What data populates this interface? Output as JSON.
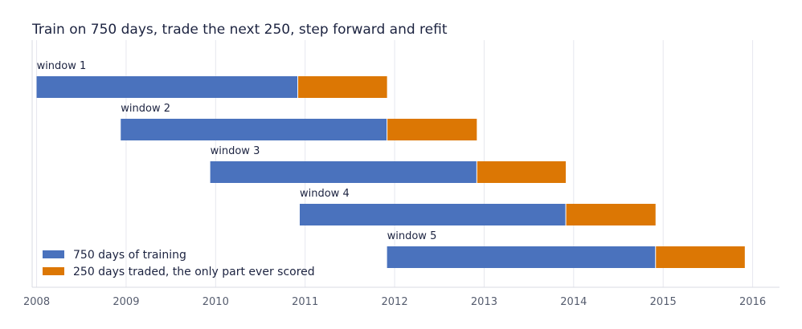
{
  "chart_data": {
    "type": "bar",
    "orientation": "horizontal",
    "stacked": true,
    "title": "Train on 750 days, trade the next 250, step forward and refit",
    "xlabel": "",
    "ylabel": "",
    "xlim": [
      2007.95,
      2016.3
    ],
    "x_ticks": [
      "2008",
      "2009",
      "2010",
      "2011",
      "2012",
      "2013",
      "2014",
      "2015",
      "2016"
    ],
    "grid": "vertical",
    "legend_position": "lower-left",
    "colors": {
      "training": "#4a72bd",
      "traded": "#dc7704"
    },
    "series": [
      {
        "name": "750 days of training",
        "key": "training"
      },
      {
        "name": "250 days traded, the only part ever scored",
        "key": "traded"
      }
    ],
    "windows": [
      {
        "label": "window 1",
        "train_start": "2008-01-01",
        "train_end": "2010-12-02",
        "trade_end": "2011-12-01"
      },
      {
        "label": "window 2",
        "train_start": "2008-12-10",
        "train_end": "2011-12-01",
        "trade_end": "2012-12-02"
      },
      {
        "label": "window 3",
        "train_start": "2009-12-10",
        "train_end": "2012-12-02",
        "trade_end": "2013-11-30"
      },
      {
        "label": "window 4",
        "train_start": "2010-12-10",
        "train_end": "2013-11-30",
        "trade_end": "2014-12-01"
      },
      {
        "label": "window 5",
        "train_start": "2011-12-01",
        "train_end": "2014-12-01",
        "trade_end": "2015-11-30"
      }
    ]
  }
}
